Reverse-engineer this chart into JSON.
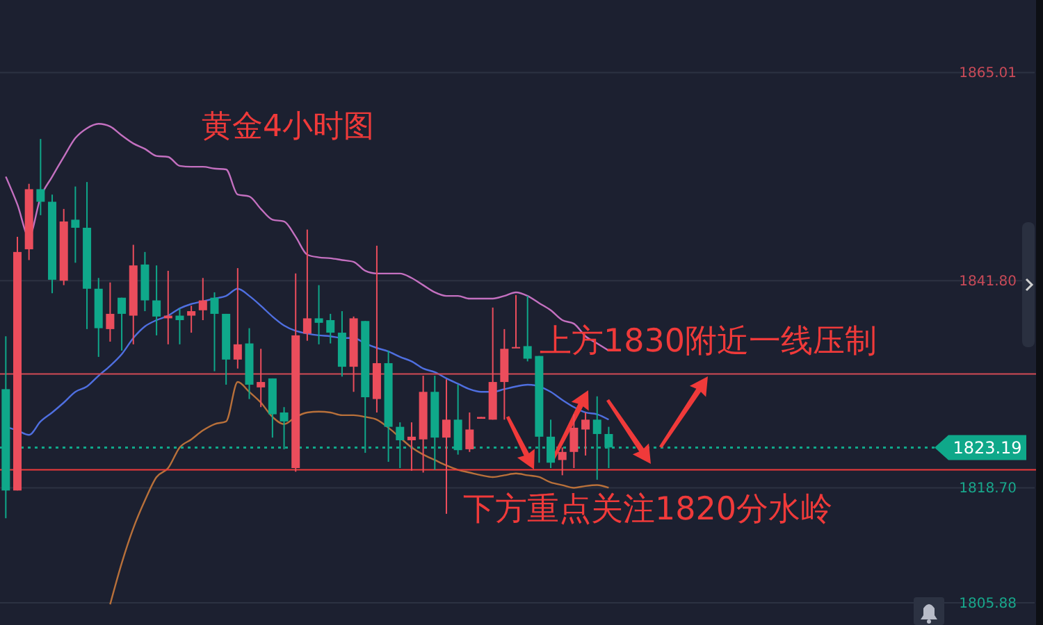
{
  "chart_data": {
    "type": "candlestick",
    "title": "黄金4小时图",
    "annotations": [
      "上方1830附近一线压制",
      "下方重点关注1820分水岭"
    ],
    "categories": [
      null,
      null,
      null,
      null,
      null,
      null,
      null,
      null,
      null,
      null,
      null,
      null,
      null,
      null,
      null,
      null,
      null,
      null,
      null,
      null,
      null,
      null,
      null,
      null,
      null,
      null,
      null,
      null,
      null,
      null,
      null,
      null,
      null,
      null,
      null,
      null,
      null,
      null,
      null,
      null,
      null,
      null,
      null,
      null,
      null,
      null,
      null,
      null,
      null,
      null,
      null,
      null,
      null,
      null,
      null,
      null,
      null,
      null,
      null,
      null,
      null,
      null,
      null,
      null,
      null,
      null,
      null,
      null,
      null,
      null,
      null,
      null,
      null,
      null,
      null,
      null,
      null,
      null,
      null,
      null,
      null,
      null,
      null
    ],
    "ohlc": [
      [
        1829.7,
        1835.6,
        1815.3,
        1818.4
      ],
      [
        1818.4,
        1846.7,
        1818.4,
        1845.0
      ],
      [
        1845.3,
        1852.6,
        1844.1,
        1852.0
      ],
      [
        1852.0,
        1857.6,
        1849.1,
        1850.6
      ],
      [
        1850.6,
        1851.4,
        1840.4,
        1841.9
      ],
      [
        1841.8,
        1849.8,
        1841.3,
        1848.4
      ],
      [
        1848.6,
        1852.3,
        1843.8,
        1847.7
      ],
      [
        1847.7,
        1852.8,
        1836.4,
        1840.9
      ],
      [
        1840.9,
        1842.1,
        1833.3,
        1836.5
      ],
      [
        1836.4,
        1841.6,
        1835.0,
        1838.1
      ],
      [
        1839.9,
        1839.9,
        1834.0,
        1838.1
      ],
      [
        1837.9,
        1845.8,
        1834.7,
        1843.5
      ],
      [
        1843.6,
        1845.0,
        1838.4,
        1839.6
      ],
      [
        1839.6,
        1843.5,
        1835.7,
        1837.8
      ],
      [
        1837.6,
        1842.9,
        1834.7,
        1837.9
      ],
      [
        1837.9,
        1838.7,
        1834.7,
        1837.4
      ],
      [
        1837.9,
        1839.0,
        1836.0,
        1838.4
      ],
      [
        1838.5,
        1842.1,
        1837.4,
        1839.6
      ],
      [
        1839.9,
        1840.5,
        1831.7,
        1838.1
      ],
      [
        1838.1,
        1838.1,
        1830.2,
        1833.0
      ],
      [
        1833.0,
        1843.2,
        1832.0,
        1834.7
      ],
      [
        1834.8,
        1836.5,
        1828.6,
        1830.2
      ],
      [
        1829.9,
        1834.2,
        1827.7,
        1830.5
      ],
      [
        1830.9,
        1830.9,
        1824.3,
        1826.9
      ],
      [
        1827.1,
        1827.7,
        1823.0,
        1826.1
      ],
      [
        1820.9,
        1842.6,
        1820.5,
        1835.7
      ],
      [
        1835.9,
        1847.5,
        1835.1,
        1837.6
      ],
      [
        1837.6,
        1841.3,
        1834.7,
        1837.1
      ],
      [
        1837.4,
        1838.1,
        1834.8,
        1836.0
      ],
      [
        1836.0,
        1838.4,
        1831.1,
        1832.2
      ],
      [
        1832.2,
        1837.8,
        1829.4,
        1837.6
      ],
      [
        1837.3,
        1837.3,
        1822.6,
        1828.8
      ],
      [
        1828.6,
        1845.7,
        1827.1,
        1832.6
      ],
      [
        1832.6,
        1834.0,
        1821.6,
        1825.5
      ],
      [
        1825.5,
        1826.0,
        1820.9,
        1824.0
      ],
      [
        1824.0,
        1826.0,
        1820.6,
        1824.4
      ],
      [
        1824.1,
        1831.2,
        1820.4,
        1829.4
      ],
      [
        1829.4,
        1831.2,
        1820.7,
        1824.3
      ],
      [
        1824.3,
        1830.8,
        1815.8,
        1826.3
      ],
      [
        1826.3,
        1830.2,
        1822.4,
        1822.9
      ],
      [
        1823.0,
        1827.1,
        1822.7,
        1825.2
      ],
      [
        1826.4,
        1826.6,
        1826.4,
        1826.6
      ],
      [
        1826.3,
        1838.8,
        1826.3,
        1830.5
      ],
      [
        1830.5,
        1836.4,
        1826.3,
        1834.2
      ],
      [
        1834.3,
        1840.2,
        1834.3,
        1834.4
      ],
      [
        1834.5,
        1840.1,
        1832.8,
        1833.1
      ],
      [
        1833.4,
        1833.4,
        1821.5,
        1824.4
      ],
      [
        1824.4,
        1826.3,
        1820.9,
        1821.5
      ],
      [
        1821.8,
        1823.2,
        1820.1,
        1822.7
      ],
      [
        1822.7,
        1826.9,
        1820.9,
        1825.4
      ],
      [
        1825.2,
        1827.1,
        1822.3,
        1826.3
      ],
      [
        1826.3,
        1828.9,
        1819.6,
        1824.7
      ],
      [
        1824.7,
        1825.5,
        1820.9,
        1823.2
      ],
      null,
      null,
      null,
      null,
      null,
      null,
      null,
      null,
      null,
      null,
      null,
      null,
      null,
      null,
      null,
      null,
      null,
      null,
      null,
      null,
      null,
      null,
      null,
      null,
      null,
      null,
      null,
      null,
      null,
      null
    ],
    "colors": [
      "#0fa88a",
      "#eb4d5c",
      "#eb4d5c",
      "#0fa88a",
      "#0fa88a",
      "#eb4d5c",
      "#0fa88a",
      "#0fa88a",
      "#0fa88a",
      "#eb4d5c",
      "#0fa88a",
      "#eb4d5c",
      "#0fa88a",
      "#0fa88a",
      "#eb4d5c",
      "#0fa88a",
      "#eb4d5c",
      "#eb4d5c",
      "#0fa88a",
      "#0fa88a",
      "#eb4d5c",
      "#0fa88a",
      "#eb4d5c",
      "#0fa88a",
      "#0fa88a",
      "#eb4d5c",
      "#eb4d5c",
      "#0fa88a",
      "#0fa88a",
      "#0fa88a",
      "#eb4d5c",
      "#0fa88a",
      "#eb4d5c",
      "#0fa88a",
      "#0fa88a",
      "#eb4d5c",
      "#eb4d5c",
      "#0fa88a",
      "#eb4d5c",
      "#0fa88a",
      "#eb4d5c",
      "#eb4d5c",
      "#eb4d5c",
      "#eb4d5c",
      "#eb4d5c",
      "#0fa88a",
      "#0fa88a",
      "#0fa88a",
      "#eb4d5c",
      "#eb4d5c",
      "#eb4d5c",
      "#0fa88a",
      "#0fa88a",
      null,
      null,
      null,
      null,
      null,
      null,
      null,
      null,
      null,
      null,
      null,
      null,
      null,
      null,
      null,
      null,
      null,
      null,
      null,
      null,
      null,
      null,
      null,
      null,
      null,
      null,
      null,
      null,
      null,
      null
    ],
    "series": [
      {
        "type": "line",
        "color": "#c470c0",
        "values": [
          1853.4,
          1850.3,
          1846.7,
          1851.1,
          1853.4,
          1855.6,
          1857.7,
          1858.8,
          1859.3,
          1859.0,
          1858.0,
          1857.1,
          1856.5,
          1855.7,
          1855.6,
          1854.6,
          1854.5,
          1854.5,
          1854.3,
          1854.2,
          1851.4,
          1851.2,
          1849.8,
          1848.6,
          1848.4,
          1846.7,
          1844.7,
          1844.4,
          1844.3,
          1844.1,
          1843.9,
          1842.9,
          1842.6,
          1842.6,
          1842.6,
          1842.1,
          1841.3,
          1840.5,
          1840.1,
          1840.1,
          1839.8,
          1839.8,
          1839.8,
          1840.1,
          1840.5,
          1840.1,
          1839.3,
          1838.5,
          1837.4,
          1837.0,
          1835.6,
          1834.8,
          1834.0,
          null,
          null,
          null,
          null,
          null,
          null,
          null,
          null,
          null,
          null,
          null,
          null,
          null,
          null,
          null,
          null,
          null,
          null,
          null,
          null,
          null,
          null,
          null,
          null,
          null,
          null,
          null,
          null,
          null,
          null
        ]
      },
      {
        "type": "line",
        "color": "#4f6fe0",
        "values": [
          1825.5,
          1825.1,
          1824.6,
          1826.1,
          1827.1,
          1828.2,
          1829.4,
          1830.0,
          1831.2,
          1832.3,
          1833.6,
          1835.4,
          1836.7,
          1837.4,
          1837.9,
          1838.7,
          1839.2,
          1839.5,
          1839.8,
          1840.1,
          1840.9,
          1840.1,
          1839.0,
          1837.8,
          1836.8,
          1836.2,
          1835.9,
          1835.7,
          1835.6,
          1835.4,
          1835.4,
          1834.8,
          1834.3,
          1833.9,
          1833.3,
          1832.8,
          1832.0,
          1831.6,
          1830.9,
          1830.3,
          1829.7,
          1829.4,
          1829.4,
          1829.7,
          1830.0,
          1830.2,
          1830.0,
          1829.4,
          1828.5,
          1827.7,
          1827.1,
          1826.9,
          1826.3,
          null,
          null,
          null,
          null,
          null,
          null,
          null,
          null,
          null,
          null,
          null,
          null,
          null,
          null,
          null,
          null,
          null,
          null,
          null,
          null,
          null,
          null,
          null,
          null,
          null,
          null,
          null,
          null,
          null,
          null
        ]
      },
      {
        "type": "line",
        "color": "#b8703a",
        "values": [
          null,
          null,
          null,
          null,
          null,
          null,
          null,
          null,
          null,
          1805.7,
          1810.3,
          1814.2,
          1817.3,
          1819.9,
          1820.9,
          1823.2,
          1824.1,
          1825.1,
          1825.8,
          1826.1,
          1830.5,
          1829.4,
          1828.2,
          1826.6,
          1825.8,
          1826.6,
          1827.1,
          1827.2,
          1827.1,
          1826.8,
          1826.8,
          1826.6,
          1826.3,
          1825.4,
          1824.3,
          1823.2,
          1822.4,
          1821.8,
          1821.2,
          1820.7,
          1820.4,
          1820.1,
          1819.9,
          1820.1,
          1820.3,
          1820.1,
          1819.9,
          1819.3,
          1819.0,
          1818.7,
          1818.9,
          1819.0,
          1818.7,
          null,
          null,
          null,
          null,
          null,
          null,
          null,
          null,
          null,
          null,
          null,
          null,
          null,
          null,
          null,
          null,
          null,
          null,
          null,
          null,
          null,
          null,
          null,
          null,
          null,
          null,
          null,
          null,
          null,
          null
        ]
      }
    ],
    "ylim": [
      1803.4,
      1873.1
    ],
    "yticks": [
      1865.01,
      {
        "value": 1841.8,
        "label": "1841.80"
      },
      {
        "value": 1818.7,
        "label": "1818.70"
      },
      1805.88
    ],
    "ref_lines": [
      {
        "axis": "y",
        "value": 1831.4,
        "color": "#d24a55",
        "line_style": "solid"
      },
      {
        "axis": "y",
        "value": 1820.7,
        "color": "#f03a3a",
        "line_style": "solid"
      },
      {
        "axis": "y",
        "value": 1823.19,
        "label": "1823.19",
        "color": "#0fa88a",
        "line_style": "dotted"
      }
    ],
    "grid": "y"
  }
}
